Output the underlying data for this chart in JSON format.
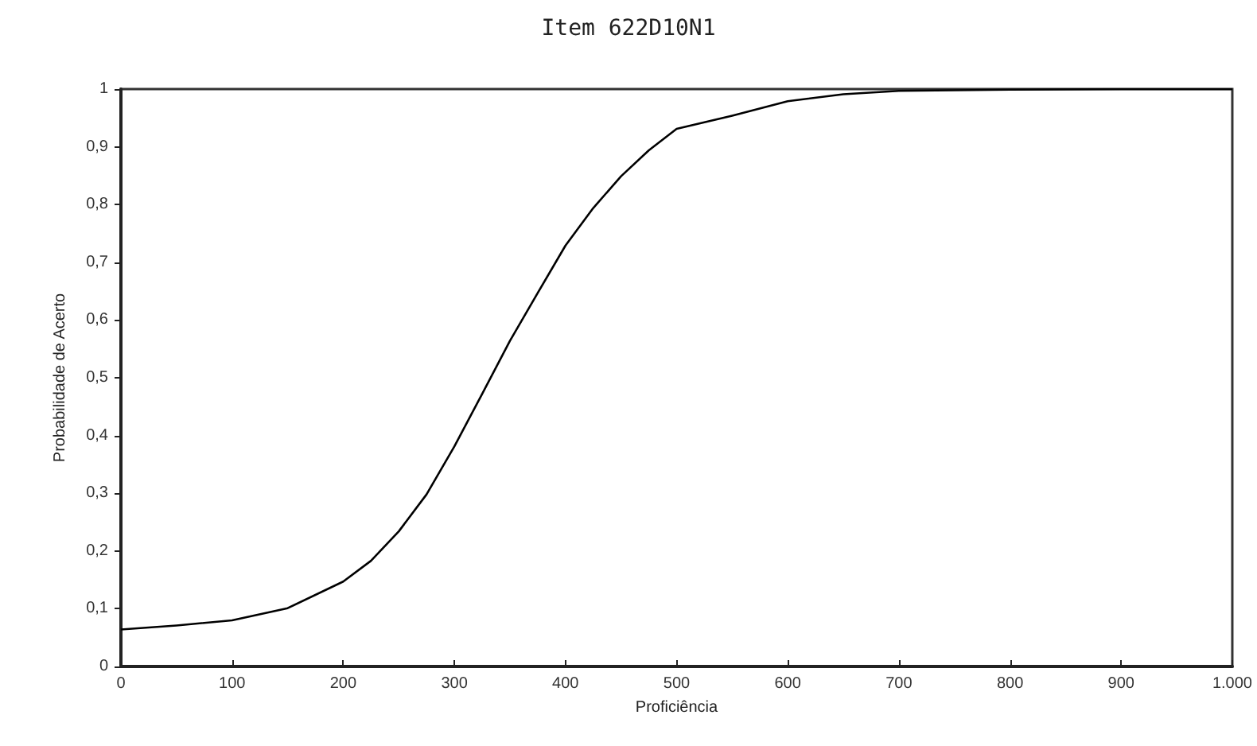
{
  "chart_data": {
    "type": "line",
    "title": "Item 622D10N1",
    "xlabel": "Proficiência",
    "ylabel": "Probabilidade de Acerto",
    "x": [
      0,
      50,
      100,
      150,
      200,
      225,
      250,
      275,
      300,
      325,
      350,
      375,
      400,
      425,
      450,
      475,
      500,
      550,
      600,
      650,
      700,
      800,
      900,
      1000
    ],
    "series": [
      {
        "color": "#000000",
        "values": [
          0.064,
          0.071,
          0.08,
          0.101,
          0.147,
          0.183,
          0.234,
          0.298,
          0.381,
          0.472,
          0.564,
          0.647,
          0.729,
          0.794,
          0.849,
          0.894,
          0.931,
          0.954,
          0.979,
          0.991,
          0.997,
          0.999,
          1,
          1
        ]
      }
    ],
    "xlim": [
      0,
      1000
    ],
    "xticks": [
      0,
      100,
      200,
      300,
      400,
      500,
      600,
      700,
      800,
      900,
      {
        "value": 1000,
        "label": "1.000"
      }
    ],
    "ylim": [
      0,
      1
    ],
    "yticks": [
      0,
      {
        "value": 0.1,
        "label": "0,1"
      },
      {
        "value": 0.2,
        "label": "0,2"
      },
      {
        "value": 0.3,
        "label": "0,3"
      },
      {
        "value": 0.4,
        "label": "0,4"
      },
      {
        "value": 0.5,
        "label": "0,5"
      },
      {
        "value": 0.6,
        "label": "0,6"
      },
      {
        "value": 0.7,
        "label": "0,7"
      },
      {
        "value": 0.8,
        "label": "0,8"
      },
      {
        "value": 0.9,
        "label": "0,9"
      },
      1
    ],
    "grid": false,
    "marker": "none",
    "line_style": "solid"
  }
}
